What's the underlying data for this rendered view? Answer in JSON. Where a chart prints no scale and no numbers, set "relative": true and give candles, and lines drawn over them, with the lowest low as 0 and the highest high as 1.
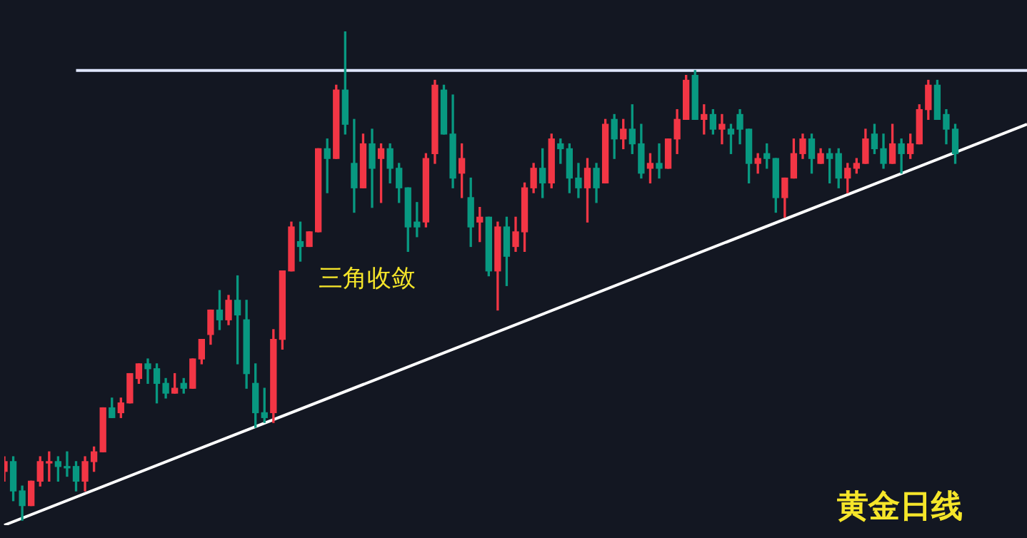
{
  "chart_data": {
    "type": "candlestick",
    "relative": true,
    "annotations": [
      "三角收敛",
      "黄金日线"
    ],
    "categories": [
      null,
      null,
      null,
      null,
      null,
      null,
      null,
      null,
      null,
      null,
      null,
      null,
      null,
      null,
      null,
      null,
      null,
      null,
      null,
      null,
      null,
      null,
      null,
      null,
      null,
      null,
      null,
      null,
      null,
      null,
      null,
      null,
      null,
      null,
      null,
      null,
      null,
      null,
      null,
      null,
      null,
      null,
      null,
      null,
      null,
      null,
      null,
      null,
      null,
      null,
      null,
      null,
      null,
      null,
      null,
      null,
      null,
      null,
      null,
      null,
      null,
      null,
      null,
      null,
      null,
      null,
      null,
      null,
      null,
      null,
      null,
      null,
      null,
      null,
      null,
      null,
      null,
      null,
      null,
      null,
      null,
      null,
      null,
      null,
      null,
      null,
      null,
      null,
      null,
      null,
      null,
      null,
      null,
      null,
      null,
      null,
      null,
      null,
      null,
      null,
      null,
      null,
      null,
      null,
      null,
      null,
      null,
      null,
      null,
      null,
      null,
      null,
      null,
      null,
      null
    ],
    "ohlc": [
      [
        0.1,
        0.13,
        0.08,
        0.12
      ],
      [
        0.12,
        0.13,
        0.04,
        0.06
      ],
      [
        0.06,
        0.07,
        0,
        0.03
      ],
      [
        0.03,
        0.08,
        0.03,
        0.08
      ],
      [
        0.08,
        0.13,
        0.07,
        0.12
      ],
      [
        0.12,
        0.14,
        0.08,
        0.12
      ],
      [
        0.12,
        0.13,
        0.08,
        0.11
      ],
      [
        0.11,
        0.14,
        0.09,
        0.11
      ],
      [
        0.11,
        0.12,
        0.06,
        0.08
      ],
      [
        0.08,
        0.13,
        0.06,
        0.12
      ],
      [
        0.12,
        0.15,
        0.1,
        0.14
      ],
      [
        0.14,
        0.23,
        0.14,
        0.23
      ],
      [
        0.23,
        0.25,
        0.21,
        0.21
      ],
      [
        0.22,
        0.25,
        0.21,
        0.24
      ],
      [
        0.24,
        0.3,
        0.24,
        0.3
      ],
      [
        0.29,
        0.32,
        0.28,
        0.32
      ],
      [
        0.32,
        0.33,
        0.28,
        0.31
      ],
      [
        0.31,
        0.32,
        0.24,
        0.28
      ],
      [
        0.28,
        0.29,
        0.25,
        0.26
      ],
      [
        0.26,
        0.3,
        0.26,
        0.27
      ],
      [
        0.28,
        0.29,
        0.26,
        0.27
      ],
      [
        0.27,
        0.33,
        0.27,
        0.33
      ],
      [
        0.33,
        0.37,
        0.32,
        0.37
      ],
      [
        0.38,
        0.43,
        0.36,
        0.43
      ],
      [
        0.43,
        0.47,
        0.39,
        0.41
      ],
      [
        0.41,
        0.46,
        0.4,
        0.45
      ],
      [
        0.45,
        0.5,
        0.32,
        0.42
      ],
      [
        0.41,
        0.45,
        0.27,
        0.3
      ],
      [
        0.28,
        0.32,
        0.19,
        0.22
      ],
      [
        0.22,
        0.27,
        0.2,
        0.21
      ],
      [
        0.22,
        0.39,
        0.2,
        0.37
      ],
      [
        0.37,
        0.51,
        0.35,
        0.51
      ],
      [
        0.51,
        0.61,
        0.51,
        0.6
      ],
      [
        0.57,
        0.61,
        0.53,
        0.56
      ],
      [
        0.56,
        0.59,
        0.56,
        0.59
      ],
      [
        0.59,
        0.76,
        0.59,
        0.76
      ],
      [
        0.76,
        0.78,
        0.67,
        0.74
      ],
      [
        0.74,
        0.89,
        0.74,
        0.88
      ],
      [
        0.88,
        1,
        0.79,
        0.81
      ],
      [
        0.73,
        0.82,
        0.63,
        0.68
      ],
      [
        0.68,
        0.79,
        0.68,
        0.77
      ],
      [
        0.77,
        0.8,
        0.64,
        0.72
      ],
      [
        0.74,
        0.77,
        0.65,
        0.76
      ],
      [
        0.76,
        0.77,
        0.69,
        0.72
      ],
      [
        0.72,
        0.73,
        0.65,
        0.68
      ],
      [
        0.68,
        0.68,
        0.55,
        0.6
      ],
      [
        0.61,
        0.65,
        0.58,
        0.6
      ],
      [
        0.61,
        0.75,
        0.6,
        0.74
      ],
      [
        0.75,
        0.9,
        0.73,
        0.89
      ],
      [
        0.88,
        0.89,
        0.79,
        0.79
      ],
      [
        0.79,
        0.87,
        0.68,
        0.7
      ],
      [
        0.71,
        0.77,
        0.66,
        0.74
      ],
      [
        0.66,
        0.7,
        0.56,
        0.6
      ],
      [
        0.61,
        0.64,
        0.57,
        0.62
      ],
      [
        0.62,
        0.62,
        0.5,
        0.51
      ],
      [
        0.51,
        0.61,
        0.43,
        0.6
      ],
      [
        0.6,
        0.62,
        0.48,
        0.54
      ],
      [
        0.56,
        0.62,
        0.55,
        0.59
      ],
      [
        0.59,
        0.69,
        0.55,
        0.68
      ],
      [
        0.68,
        0.73,
        0.67,
        0.72
      ],
      [
        0.72,
        0.76,
        0.66,
        0.69
      ],
      [
        0.69,
        0.79,
        0.68,
        0.78
      ],
      [
        0.77,
        0.78,
        0.73,
        0.76
      ],
      [
        0.76,
        0.77,
        0.67,
        0.7
      ],
      [
        0.7,
        0.73,
        0.66,
        0.68
      ],
      [
        0.68,
        0.74,
        0.61,
        0.72
      ],
      [
        0.72,
        0.73,
        0.65,
        0.68
      ],
      [
        0.69,
        0.82,
        0.69,
        0.81
      ],
      [
        0.82,
        0.83,
        0.74,
        0.78
      ],
      [
        0.78,
        0.82,
        0.76,
        0.8
      ],
      [
        0.8,
        0.85,
        0.75,
        0.77
      ],
      [
        0.77,
        0.81,
        0.7,
        0.71
      ],
      [
        0.72,
        0.75,
        0.69,
        0.73
      ],
      [
        0.73,
        0.77,
        0.7,
        0.72
      ],
      [
        0.72,
        0.78,
        0.72,
        0.78
      ],
      [
        0.78,
        0.84,
        0.75,
        0.82
      ],
      [
        0.82,
        0.91,
        0.82,
        0.9
      ],
      [
        0.91,
        0.92,
        0.82,
        0.82
      ],
      [
        0.82,
        0.85,
        0.79,
        0.83
      ],
      [
        0.83,
        0.84,
        0.79,
        0.8
      ],
      [
        0.8,
        0.83,
        0.77,
        0.81
      ],
      [
        0.8,
        0.81,
        0.75,
        0.79
      ],
      [
        0.83,
        0.84,
        0.77,
        0.8
      ],
      [
        0.8,
        0.8,
        0.69,
        0.73
      ],
      [
        0.73,
        0.75,
        0.71,
        0.74
      ],
      [
        0.75,
        0.77,
        0.72,
        0.74
      ],
      [
        0.74,
        0.74,
        0.63,
        0.66
      ],
      [
        0.66,
        0.7,
        0.62,
        0.7
      ],
      [
        0.7,
        0.78,
        0.7,
        0.75
      ],
      [
        0.75,
        0.79,
        0.74,
        0.78
      ],
      [
        0.78,
        0.79,
        0.71,
        0.74
      ],
      [
        0.73,
        0.76,
        0.73,
        0.75
      ],
      [
        0.75,
        0.76,
        0.69,
        0.74
      ],
      [
        0.75,
        0.76,
        0.68,
        0.7
      ],
      [
        0.7,
        0.73,
        0.67,
        0.72
      ],
      [
        0.72,
        0.74,
        0.71,
        0.73
      ],
      [
        0.73,
        0.8,
        0.73,
        0.78
      ],
      [
        0.79,
        0.81,
        0.75,
        0.76
      ],
      [
        0.76,
        0.79,
        0.72,
        0.73
      ],
      [
        0.73,
        0.81,
        0.73,
        0.77
      ],
      [
        0.77,
        0.78,
        0.71,
        0.75
      ],
      [
        0.75,
        0.79,
        0.74,
        0.77
      ],
      [
        0.77,
        0.85,
        0.77,
        0.84
      ],
      [
        0.84,
        0.9,
        0.82,
        0.89
      ],
      [
        0.89,
        0.9,
        0.82,
        0.82
      ],
      [
        0.83,
        0.84,
        0.77,
        0.8
      ],
      [
        0.8,
        0.81,
        0.73,
        0.75
      ],
      null,
      null,
      null,
      null,
      null,
      null,
      null,
      null
    ],
    "colors": [
      "#f23645",
      "#089981",
      "#089981",
      "#f23645",
      "#f23645",
      "#f23645",
      "#089981",
      "#089981",
      "#089981",
      "#f23645",
      "#f23645",
      "#f23645",
      "#089981",
      "#f23645",
      "#f23645",
      "#f23645",
      "#089981",
      "#089981",
      "#089981",
      "#f23645",
      "#089981",
      "#f23645",
      "#f23645",
      "#f23645",
      "#089981",
      "#f23645",
      "#089981",
      "#089981",
      "#089981",
      "#089981",
      "#f23645",
      "#f23645",
      "#f23645",
      "#089981",
      "#f23645",
      "#f23645",
      "#089981",
      "#f23645",
      "#089981",
      "#089981",
      "#f23645",
      "#089981",
      "#f23645",
      "#089981",
      "#089981",
      "#089981",
      "#089981",
      "#f23645",
      "#f23645",
      "#089981",
      "#089981",
      "#f23645",
      "#089981",
      "#f23645",
      "#089981",
      "#f23645",
      "#089981",
      "#f23645",
      "#f23645",
      "#f23645",
      "#089981",
      "#f23645",
      "#089981",
      "#089981",
      "#089981",
      "#f23645",
      "#089981",
      "#f23645",
      "#089981",
      "#f23645",
      "#089981",
      "#089981",
      "#f23645",
      "#089981",
      "#f23645",
      "#f23645",
      "#f23645",
      "#089981",
      "#f23645",
      "#089981",
      "#f23645",
      "#089981",
      "#089981",
      "#089981",
      "#f23645",
      "#089981",
      "#089981",
      "#f23645",
      "#f23645",
      "#f23645",
      "#089981",
      "#f23645",
      "#089981",
      "#089981",
      "#f23645",
      "#f23645",
      "#f23645",
      "#089981",
      "#089981",
      "#f23645",
      "#089981",
      "#f23645",
      "#f23645",
      "#f23645",
      "#089981",
      "#089981",
      "#089981",
      null,
      null,
      null,
      null,
      null,
      null,
      null,
      null
    ],
    "series": [
      {
        "type": "line",
        "color": "#dfe6ff",
        "values": [
          null,
          null,
          null,
          null,
          null,
          null,
          null,
          null,
          0.92,
          null,
          null,
          null,
          null,
          null,
          null,
          null,
          null,
          null,
          null,
          null,
          null,
          null,
          null,
          null,
          null,
          null,
          null,
          null,
          null,
          null,
          null,
          null,
          null,
          null,
          null,
          null,
          null,
          null,
          null,
          null,
          null,
          null,
          null,
          null,
          null,
          null,
          null,
          null,
          null,
          null,
          null,
          null,
          null,
          null,
          null,
          null,
          null,
          null,
          null,
          null,
          null,
          null,
          null,
          null,
          null,
          null,
          null,
          null,
          null,
          null,
          null,
          null,
          null,
          null,
          null,
          null,
          null,
          null,
          null,
          null,
          null,
          null,
          null,
          null,
          null,
          null,
          null,
          null,
          null,
          null,
          null,
          null,
          null,
          null,
          null,
          null,
          null,
          null,
          null,
          null,
          null,
          null,
          null,
          null,
          null,
          null,
          null,
          null,
          null,
          null,
          null,
          null,
          null,
          null,
          0.92
        ]
      },
      {
        "type": "line",
        "color": "#ffffff",
        "values": [
          -0.01,
          null,
          null,
          null,
          null,
          null,
          null,
          null,
          null,
          null,
          null,
          null,
          null,
          null,
          null,
          null,
          null,
          null,
          null,
          null,
          null,
          null,
          null,
          null,
          null,
          null,
          null,
          null,
          null,
          null,
          null,
          null,
          null,
          null,
          null,
          null,
          null,
          null,
          null,
          null,
          null,
          null,
          null,
          null,
          null,
          null,
          null,
          null,
          null,
          null,
          null,
          null,
          null,
          null,
          null,
          null,
          null,
          null,
          null,
          null,
          null,
          null,
          null,
          null,
          null,
          null,
          null,
          null,
          null,
          null,
          null,
          null,
          null,
          null,
          null,
          null,
          null,
          null,
          null,
          null,
          null,
          null,
          null,
          null,
          null,
          null,
          null,
          null,
          null,
          null,
          null,
          null,
          null,
          null,
          null,
          null,
          null,
          null,
          null,
          null,
          null,
          null,
          null,
          null,
          null,
          null,
          null,
          null,
          null,
          null,
          null,
          null,
          null,
          null,
          0.81
        ]
      }
    ]
  }
}
